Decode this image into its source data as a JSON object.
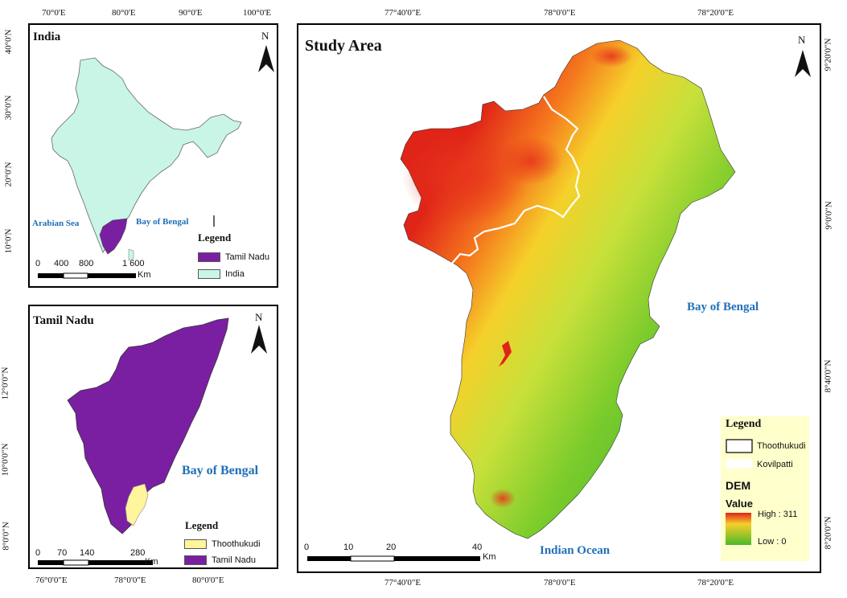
{
  "india_panel": {
    "title": "India",
    "top_ticks": [
      "70°0'E",
      "80°0'E",
      "90°0'E",
      "100°0'E"
    ],
    "left_ticks": [
      "40°0'N",
      "30°0'N",
      "20°0'N",
      "10°0'N"
    ],
    "labels": {
      "arabian_sea": "Arabian Sea",
      "bay_of_bengal": "Bay of Bengal"
    },
    "legend": {
      "title": "Legend",
      "items": [
        {
          "label": "Tamil Nadu",
          "color": "#7b1fa2"
        },
        {
          "label": "India",
          "color": "#c8f5e6"
        }
      ]
    },
    "scale": {
      "ticks": [
        "0",
        "400",
        "800",
        "1 600"
      ],
      "unit": "Km"
    }
  },
  "tn_panel": {
    "title": "Tamil Nadu",
    "bottom_ticks": [
      "76°0'0\"E",
      "78°0'0\"E",
      "80°0'0\"E"
    ],
    "left_ticks": [
      "12°0'0\"N",
      "10°0'0\"N",
      "8°0'0\"N"
    ],
    "labels": {
      "bay_of_bengal": "Bay of Bengal"
    },
    "legend": {
      "title": "Legend",
      "items": [
        {
          "label": "Thoothukudi",
          "color": "#fff59d"
        },
        {
          "label": "Tamil Nadu",
          "color": "#7b1fa2"
        }
      ]
    },
    "scale": {
      "ticks": [
        "0",
        "70",
        "140",
        "280"
      ],
      "unit": "Km"
    }
  },
  "study_panel": {
    "title": "Study Area",
    "top_ticks": [
      "77°40'0\"E",
      "78°0'0\"E",
      "78°20'0\"E"
    ],
    "bottom_ticks": [
      "77°40'0\"E",
      "78°0'0\"E",
      "78°20'0\"E"
    ],
    "right_ticks": [
      "9°20'0\"N",
      "9°0'0\"N",
      "8°40'0\"N",
      "8°20'0\"N"
    ],
    "labels": {
      "bay_of_bengal": "Bay of Bengal",
      "indian_ocean": "Indian Ocean"
    },
    "legend": {
      "title": "Legend",
      "items": [
        {
          "label": "Thoothukudi"
        },
        {
          "label": "Kovilpatti"
        }
      ],
      "dem_title": "DEM",
      "value_title": "Value",
      "high": "High : 311",
      "low": "Low : 0",
      "box_color": "#ffffcc"
    },
    "scale": {
      "ticks": [
        "0",
        "10",
        "20",
        "40"
      ],
      "unit": "Km"
    }
  },
  "north_label": "N"
}
